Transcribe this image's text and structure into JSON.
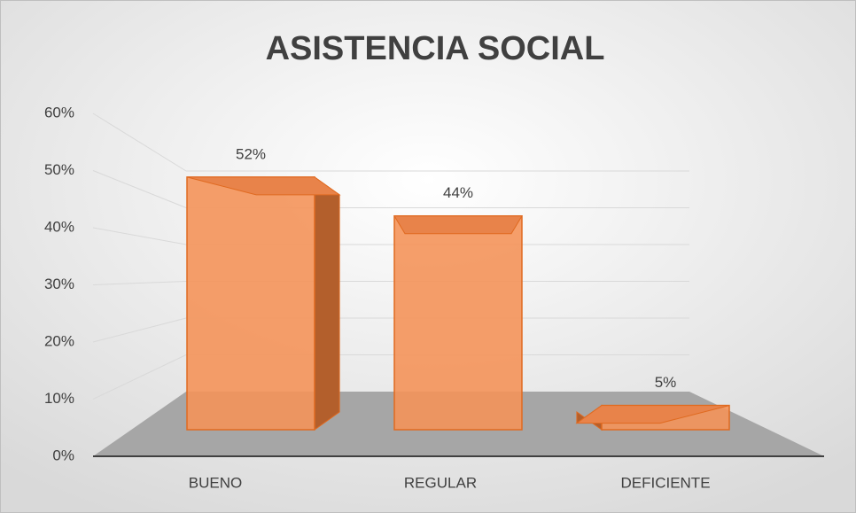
{
  "chart_data": {
    "type": "bar",
    "title": "ASISTENCIA SOCIAL",
    "categories": [
      "BUENO",
      "REGULAR",
      "DEFICIENTE"
    ],
    "values": [
      52,
      44,
      5
    ],
    "value_labels": [
      "52%",
      "44%",
      "5%"
    ],
    "color": "#f4935a",
    "ylim": [
      0,
      60
    ],
    "yticks": [
      {
        "value": 0,
        "label": "0%"
      },
      {
        "value": 10,
        "label": "10%"
      },
      {
        "value": 20,
        "label": "20%"
      },
      {
        "value": 30,
        "label": "30%"
      },
      {
        "value": 40,
        "label": "40%"
      },
      {
        "value": 50,
        "label": "50%"
      },
      {
        "value": 60,
        "label": "60%"
      }
    ],
    "grid": true
  }
}
